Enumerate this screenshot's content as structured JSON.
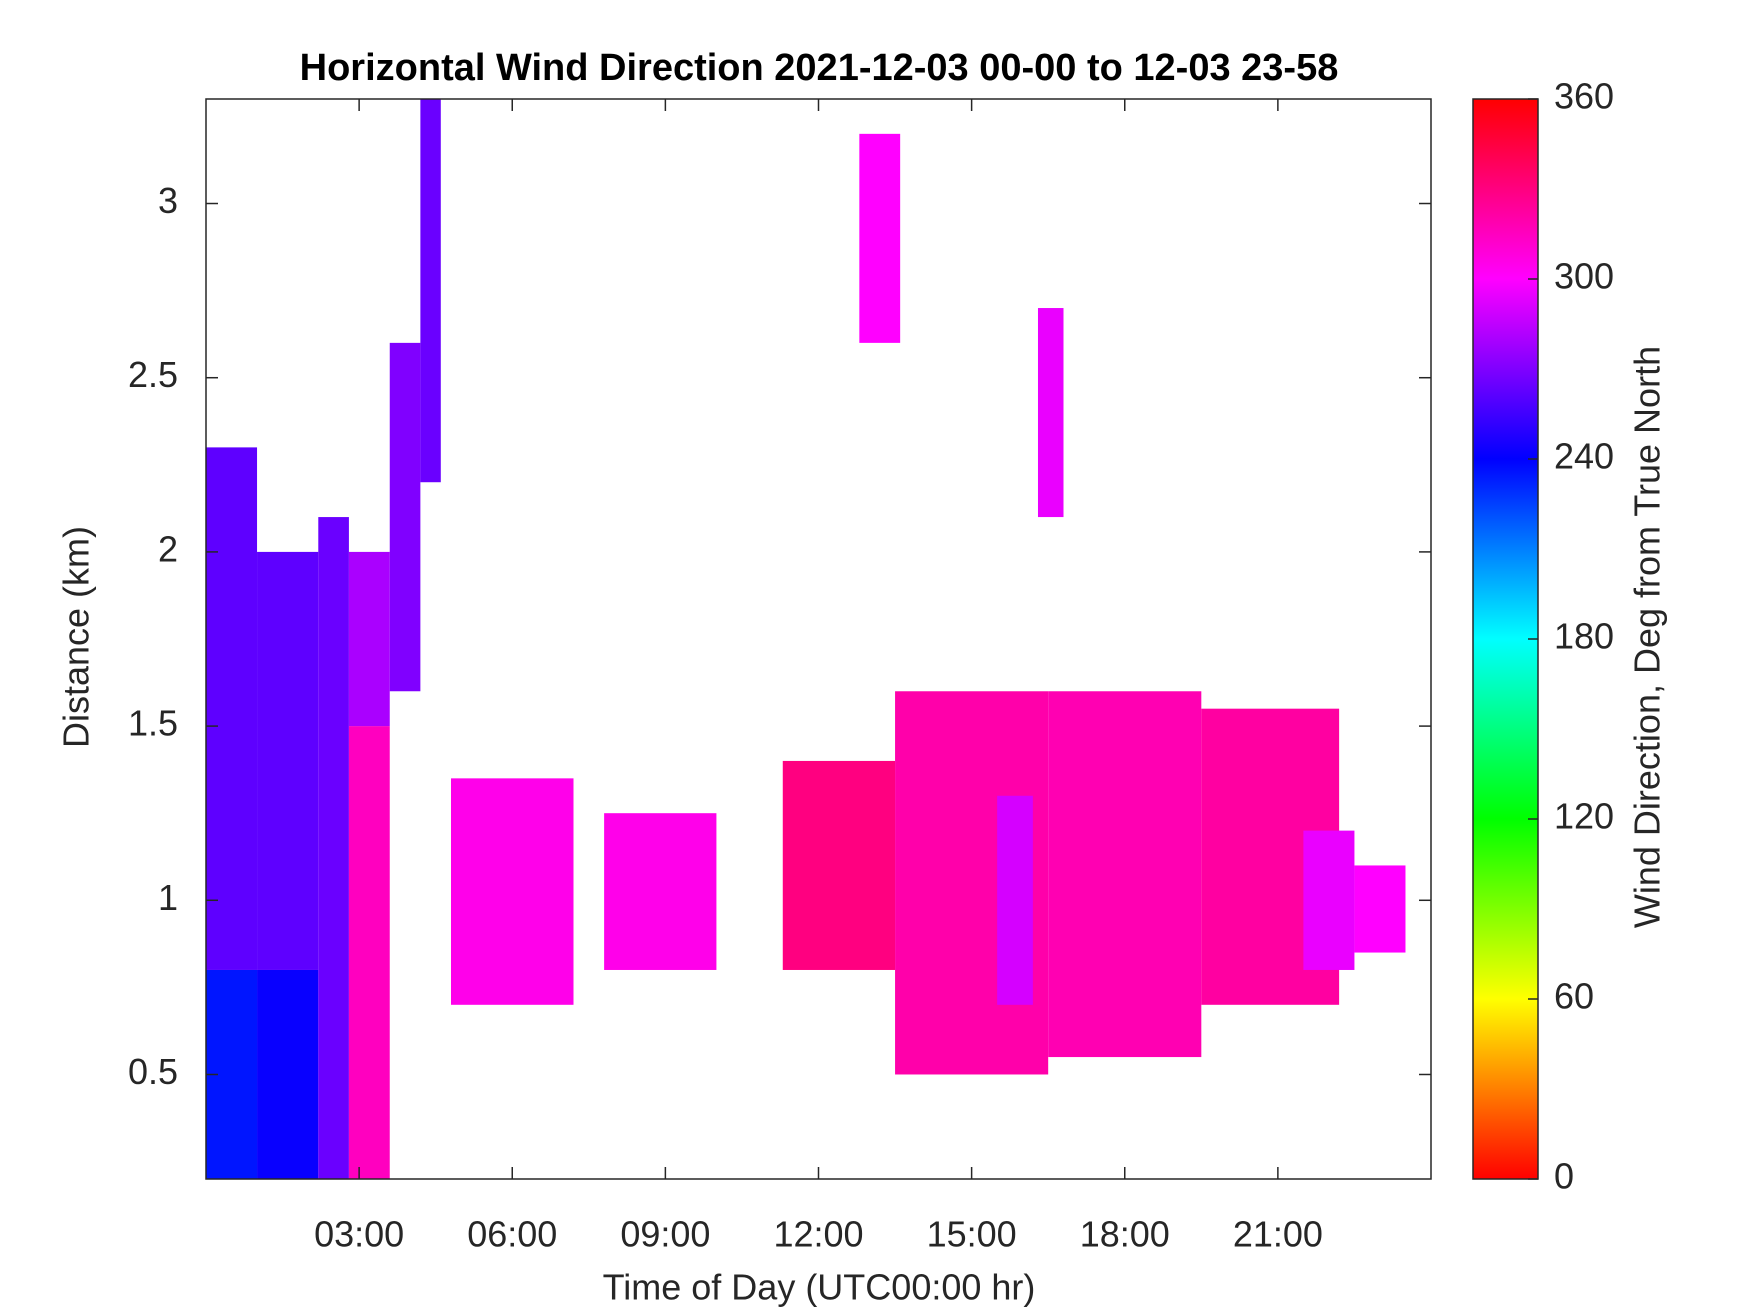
{
  "chart_data": {
    "type": "heatmap",
    "title": "Horizontal Wind Direction 2021-12-03 00-00 to 12-03 23-58",
    "x_label": "Time of Day (UTC00:00 hr)",
    "y_label": "Distance (km)",
    "colorbar_label": "Wind Direction, Deg from True North",
    "colormap": "hsv",
    "xlim": [
      0,
      24
    ],
    "xticks": [
      {
        "value": 3,
        "label": "03:00"
      },
      {
        "value": 6,
        "label": "06:00"
      },
      {
        "value": 9,
        "label": "09:00"
      },
      {
        "value": 12,
        "label": "12:00"
      },
      {
        "value": 15,
        "label": "15:00"
      },
      {
        "value": 18,
        "label": "18:00"
      },
      {
        "value": 21,
        "label": "21:00"
      }
    ],
    "ylim": [
      0.2,
      3.3
    ],
    "yticks": [
      0.5,
      1,
      1.5,
      2,
      2.5,
      3
    ],
    "clim": [
      0,
      360
    ],
    "cticks": [
      0,
      60,
      120,
      180,
      240,
      300,
      360
    ],
    "cells": [
      {
        "x": [
          0,
          1.0
        ],
        "y": [
          0.2,
          0.8
        ],
        "value": 235
      },
      {
        "x": [
          0,
          1.0
        ],
        "y": [
          0.8,
          2.3
        ],
        "value": 262
      },
      {
        "x": [
          1.0,
          2.2
        ],
        "y": [
          0.2,
          0.8
        ],
        "value": 242
      },
      {
        "x": [
          1.0,
          2.2
        ],
        "y": [
          0.8,
          2.0
        ],
        "value": 262
      },
      {
        "x": [
          2.2,
          2.8
        ],
        "y": [
          0.2,
          2.1
        ],
        "value": 265
      },
      {
        "x": [
          2.8,
          3.6
        ],
        "y": [
          0.2,
          1.5
        ],
        "value": 315
      },
      {
        "x": [
          2.8,
          3.6
        ],
        "y": [
          1.5,
          2.0
        ],
        "value": 280
      },
      {
        "x": [
          3.6,
          4.2
        ],
        "y": [
          1.6,
          2.6
        ],
        "value": 270
      },
      {
        "x": [
          4.2,
          4.6
        ],
        "y": [
          2.2,
          3.3
        ],
        "value": 265
      },
      {
        "x": [
          4.8,
          7.2
        ],
        "y": [
          0.7,
          1.35
        ],
        "value": 305
      },
      {
        "x": [
          7.8,
          10.0
        ],
        "y": [
          0.8,
          1.25
        ],
        "value": 305
      },
      {
        "x": [
          11.3,
          13.5
        ],
        "y": [
          0.8,
          1.4
        ],
        "value": 330
      },
      {
        "x": [
          12.8,
          13.6
        ],
        "y": [
          2.6,
          3.2
        ],
        "value": 300
      },
      {
        "x": [
          13.5,
          16.5
        ],
        "y": [
          0.5,
          1.6
        ],
        "value": 320
      },
      {
        "x": [
          15.5,
          16.2
        ],
        "y": [
          0.7,
          1.3
        ],
        "value": 290
      },
      {
        "x": [
          16.3,
          16.8
        ],
        "y": [
          2.1,
          2.7
        ],
        "value": 295
      },
      {
        "x": [
          16.5,
          19.5
        ],
        "y": [
          0.55,
          1.6
        ],
        "value": 318
      },
      {
        "x": [
          19.5,
          22.2
        ],
        "y": [
          0.7,
          1.55
        ],
        "value": 322
      },
      {
        "x": [
          21.5,
          22.5
        ],
        "y": [
          0.8,
          1.2
        ],
        "value": 295
      },
      {
        "x": [
          22.5,
          23.5
        ],
        "y": [
          0.85,
          1.1
        ],
        "value": 300
      }
    ]
  }
}
